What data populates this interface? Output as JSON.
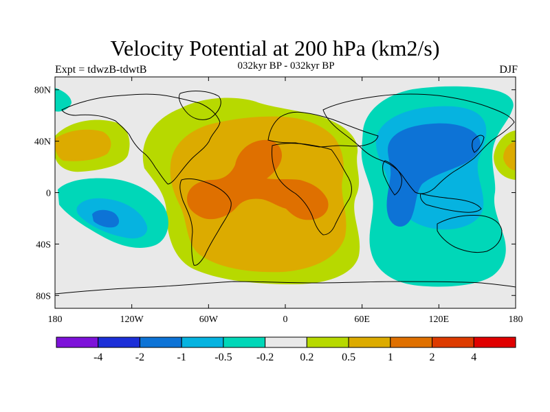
{
  "header": {
    "title": "Velocity Potential at 200 hPa (km2/s)",
    "subtitle": "032kyr BP - 032kyr BP",
    "left_label": "Expt = tdwzB-tdwtB",
    "right_label": "DJF"
  },
  "chart_data": {
    "type": "heatmap",
    "title": "Velocity Potential at 200 hPa (km2/s)",
    "subtitle": "032kyr BP - 032kyr BP",
    "variable": "Velocity Potential",
    "level": "200 hPa",
    "units": "km2/s",
    "season": "DJF",
    "experiment": "tdwzB-tdwtB",
    "xlim": [
      -180,
      180
    ],
    "ylim": [
      -90,
      90
    ],
    "x_ticks": [
      -180,
      -120,
      -60,
      0,
      60,
      120,
      180
    ],
    "x_tick_labels": [
      "180",
      "120W",
      "60W",
      "0",
      "60E",
      "120E",
      "180"
    ],
    "y_ticks": [
      80,
      40,
      0,
      -40,
      -80
    ],
    "y_tick_labels": [
      "80N",
      "40N",
      "0",
      "40S",
      "80S"
    ],
    "colorbar": {
      "levels": [
        -4,
        -2,
        -1,
        -0.5,
        -0.2,
        0.2,
        0.5,
        1,
        2,
        4
      ],
      "level_labels": [
        "-4",
        "-2",
        "-1",
        "-0.5",
        "-0.2",
        "0.2",
        "0.5",
        "1",
        "2",
        "4"
      ],
      "colors": [
        "#7d12d9",
        "#1c2fd8",
        "#0d73d6",
        "#06b3e0",
        "#00d7b8",
        "#e9e9e9",
        "#b7d900",
        "#dcab00",
        "#df7000",
        "#dd3b00",
        "#e00000"
      ]
    },
    "features": [
      {
        "name": "positive-center-atlantic",
        "lon": -20,
        "lat": 5,
        "value": 1.5
      },
      {
        "name": "positive-center-south-america",
        "lon": -60,
        "lat": -5,
        "value": 1.3
      },
      {
        "name": "positive-center-africa",
        "lon": 25,
        "lat": -10,
        "value": 1.2
      },
      {
        "name": "negative-center-asia-indian-ocean",
        "lon": 95,
        "lat": 20,
        "value": -1.1
      },
      {
        "name": "negative-center-south-pacific",
        "lon": -135,
        "lat": -22,
        "value": -0.9
      }
    ]
  }
}
